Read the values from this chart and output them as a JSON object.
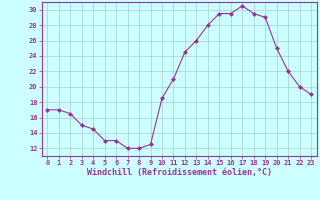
{
  "x": [
    0,
    1,
    2,
    3,
    4,
    5,
    6,
    7,
    8,
    9,
    10,
    11,
    12,
    13,
    14,
    15,
    16,
    17,
    18,
    19,
    20,
    21,
    22,
    23
  ],
  "y": [
    17,
    17,
    16.5,
    15,
    14.5,
    13,
    13,
    12,
    12,
    12.5,
    18.5,
    21,
    24.5,
    26,
    28,
    29.5,
    29.5,
    30.5,
    29.5,
    29,
    25,
    22,
    20,
    19
  ],
  "line_color": "#993399",
  "marker": "D",
  "marker_size": 2.0,
  "background_color": "#ccffff",
  "grid_color": "#aacccc",
  "xlabel": "Windchill (Refroidissement éolien,°C)",
  "xlabel_color": "#993399",
  "tick_color": "#993399",
  "ylim": [
    11,
    31
  ],
  "xlim": [
    -0.5,
    23.5
  ],
  "yticks": [
    12,
    14,
    16,
    18,
    20,
    22,
    24,
    26,
    28,
    30
  ],
  "xticks": [
    0,
    1,
    2,
    3,
    4,
    5,
    6,
    7,
    8,
    9,
    10,
    11,
    12,
    13,
    14,
    15,
    16,
    17,
    18,
    19,
    20,
    21,
    22,
    23
  ],
  "xlabel_fontsize": 6.0,
  "tick_fontsize": 5.0
}
